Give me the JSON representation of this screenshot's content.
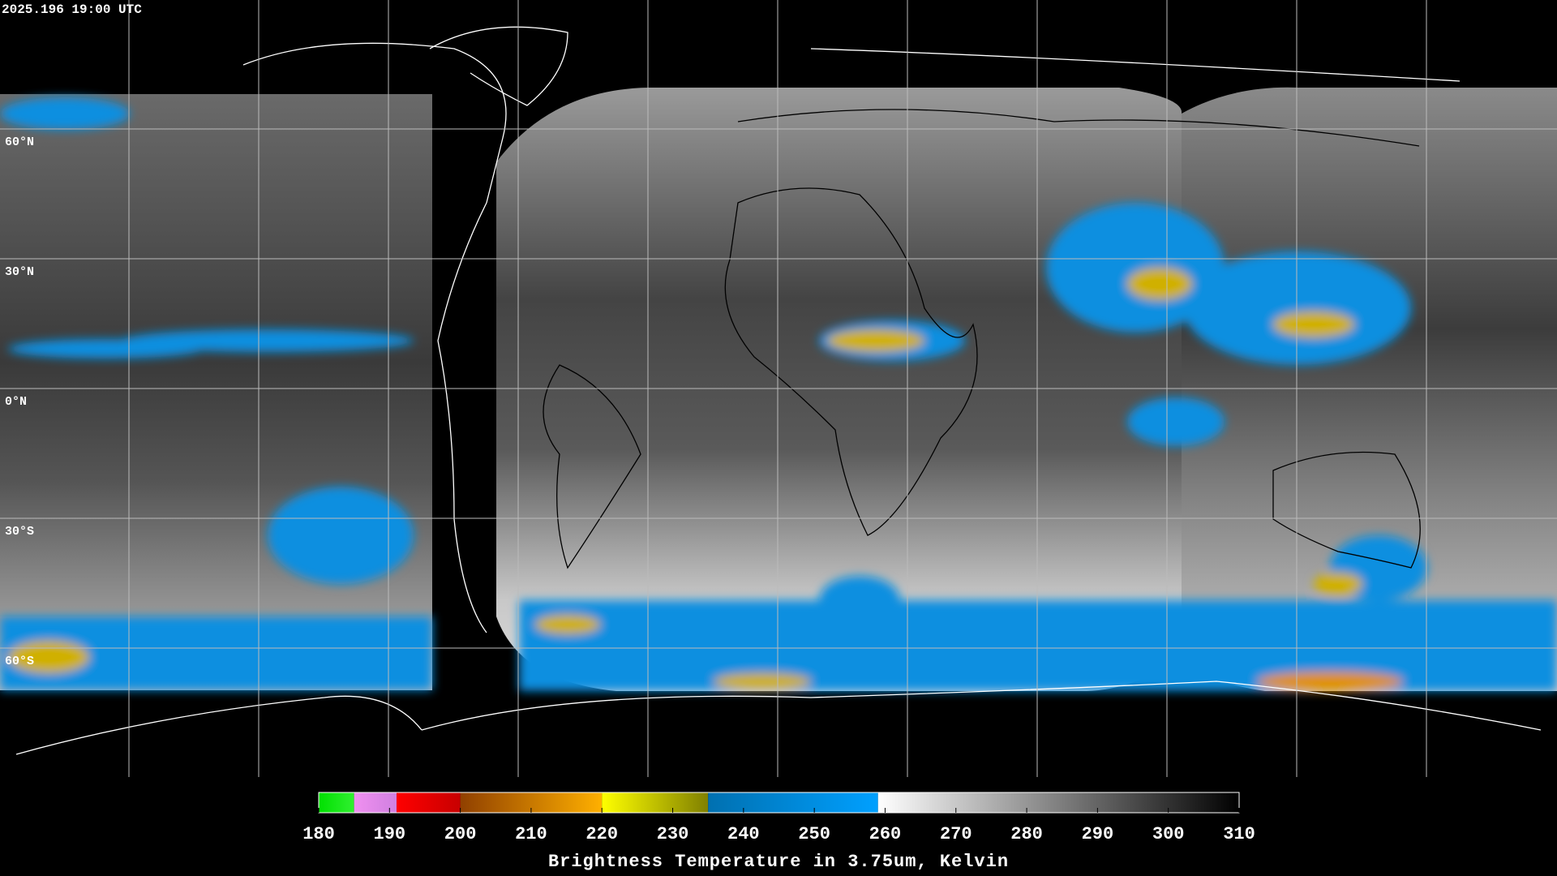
{
  "header": {
    "timestamp": "2025.196 19:00 UTC"
  },
  "map": {
    "latitudes": [
      {
        "value": 60,
        "label": "60°N"
      },
      {
        "value": 30,
        "label": "30°N"
      },
      {
        "value": 0,
        "label": "0°N"
      },
      {
        "value": -30,
        "label": "30°S"
      },
      {
        "value": -60,
        "label": "60°S"
      }
    ]
  },
  "colorbar": {
    "title": "Brightness Temperature in 3.75um, Kelvin",
    "lim": [
      180,
      310
    ],
    "ticks": [
      180,
      190,
      200,
      210,
      220,
      230,
      240,
      250,
      260,
      270,
      280,
      290,
      300,
      310
    ],
    "segments": [
      {
        "from": 180,
        "to": 185,
        "colors": [
          "#00e000",
          "#30f030"
        ]
      },
      {
        "from": 185,
        "to": 191,
        "colors": [
          "#f090f0",
          "#d080e0"
        ]
      },
      {
        "from": 191,
        "to": 200,
        "colors": [
          "#ff0000",
          "#c80000"
        ]
      },
      {
        "from": 200,
        "to": 220,
        "colors": [
          "#904000",
          "#ffb000"
        ]
      },
      {
        "from": 220,
        "to": 235,
        "colors": [
          "#ffff00",
          "#808000"
        ]
      },
      {
        "from": 235,
        "to": 259,
        "colors": [
          "#0070b0",
          "#00a0ff"
        ]
      },
      {
        "from": 259,
        "to": 310,
        "colors": [
          "#ffffff",
          "#000000"
        ]
      }
    ]
  }
}
